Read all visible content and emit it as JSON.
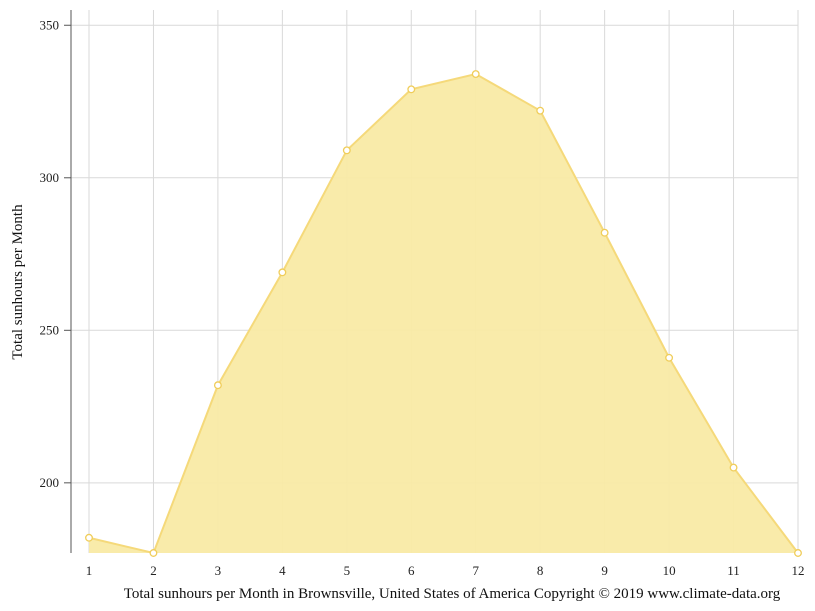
{
  "chart_data": {
    "type": "area",
    "x": [
      1,
      2,
      3,
      4,
      5,
      6,
      7,
      8,
      9,
      10,
      11,
      12
    ],
    "values": [
      182,
      177,
      232,
      269,
      309,
      329,
      334,
      322,
      282,
      241,
      205,
      177
    ],
    "ylabel": "Total sunhours per Month",
    "caption": "Total sunhours per Month in Brownsville, United States of America Copyright © 2019 www.climate-data.org",
    "ylim": [
      177,
      355
    ],
    "yticks": [
      200,
      250,
      300,
      350
    ],
    "grid": true,
    "colors": {
      "fill": "#f9eaa5",
      "line": "#f5d97a",
      "marker_stroke": "#f0cd5a",
      "grid": "#d9d9d9",
      "axis": "#555555"
    }
  }
}
